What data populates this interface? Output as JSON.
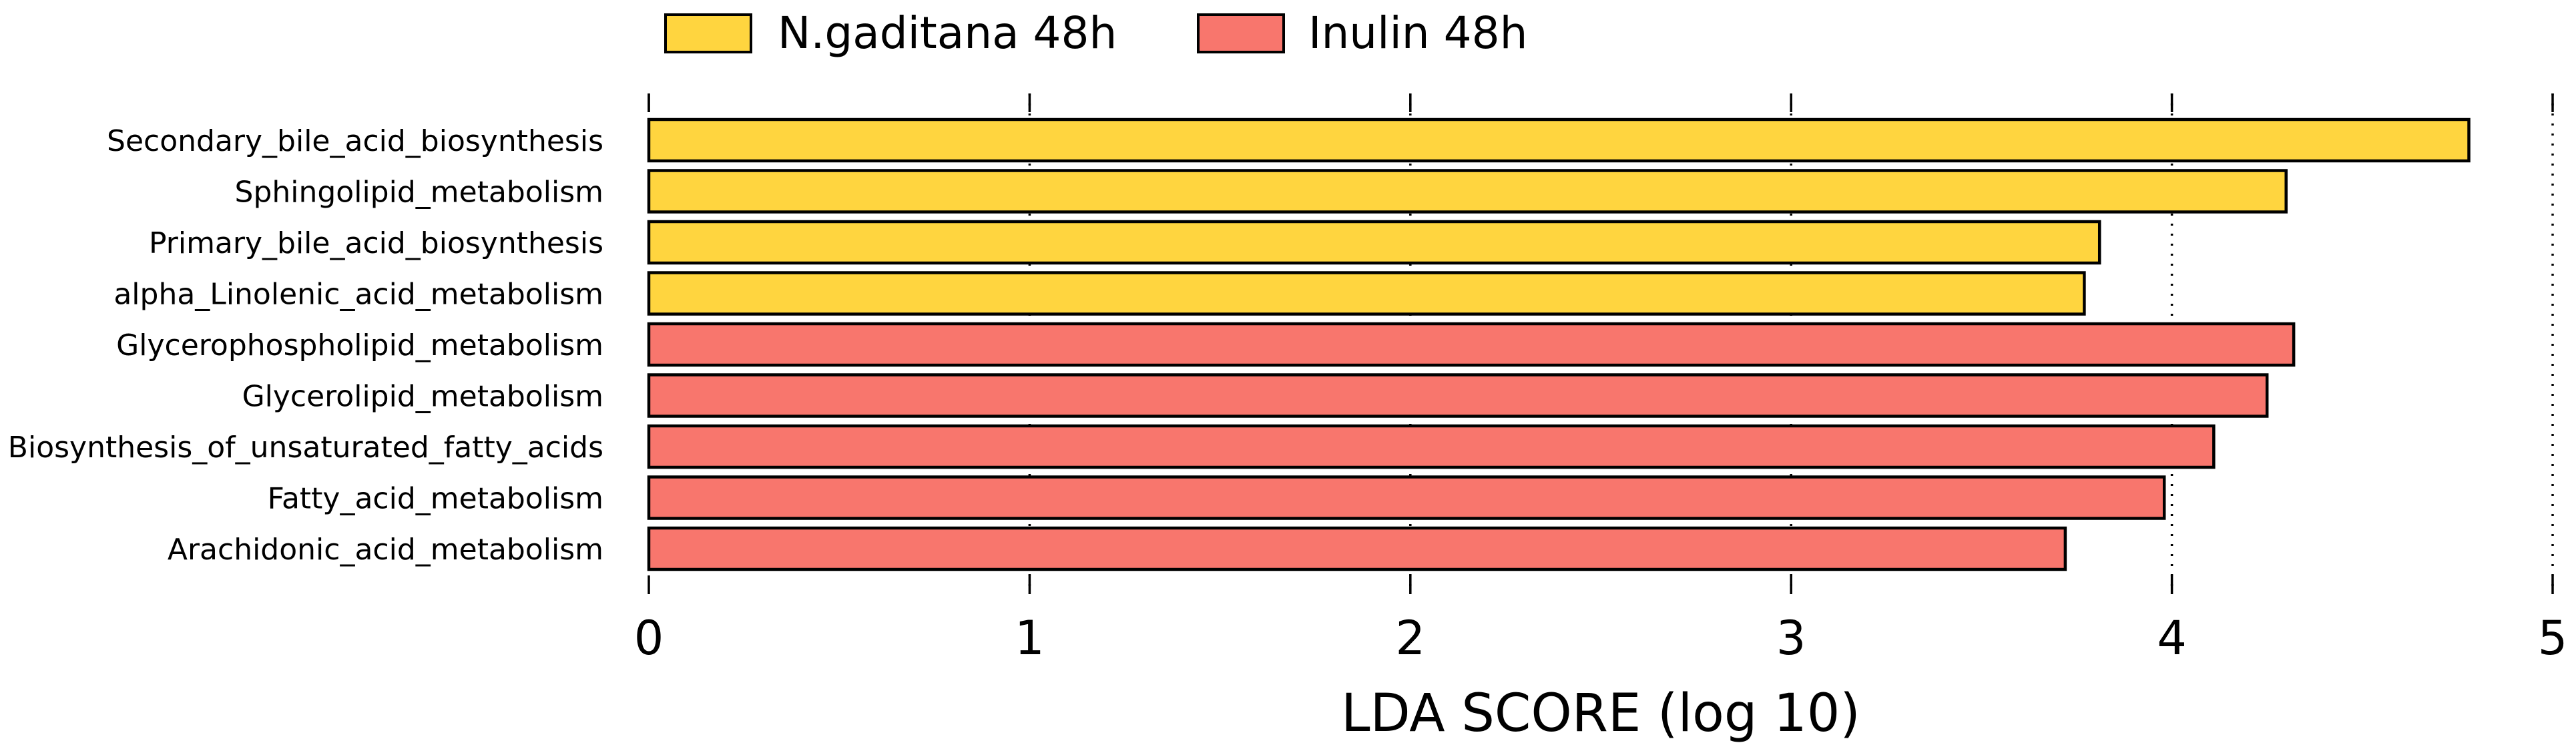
{
  "chart_data": {
    "type": "bar",
    "orientation": "horizontal",
    "xlabel": "LDA SCORE (log 10)",
    "ylabel": "",
    "xlim": [
      0,
      5
    ],
    "xticks": [
      "0",
      "1",
      "2",
      "3",
      "4",
      "5"
    ],
    "grid": "vertical dotted lines at integer ticks",
    "legend": {
      "placement": "top",
      "entries": [
        {
          "name": "N.gaditana 48h",
          "color": "#FFD53F"
        },
        {
          "name": "Inulin 48h",
          "color": "#F8766D"
        }
      ]
    },
    "bars": [
      {
        "category": "Secondary_bile_acid_biosynthesis",
        "value": 4.78,
        "group": "N.gaditana 48h"
      },
      {
        "category": "Sphingolipid_metabolism",
        "value": 4.3,
        "group": "N.gaditana 48h"
      },
      {
        "category": "Primary_bile_acid_biosynthesis",
        "value": 3.81,
        "group": "N.gaditana 48h"
      },
      {
        "category": "alpha_Linolenic_acid_metabolism",
        "value": 3.77,
        "group": "N.gaditana 48h"
      },
      {
        "category": "Glycerophospholipid_metabolism",
        "value": 4.32,
        "group": "Inulin 48h"
      },
      {
        "category": "Glycerolipid_metabolism",
        "value": 4.25,
        "group": "Inulin 48h"
      },
      {
        "category": "Biosynthesis_of_unsaturated_fatty_acids",
        "value": 4.11,
        "group": "Inulin 48h"
      },
      {
        "category": "Fatty_acid_metabolism",
        "value": 3.98,
        "group": "Inulin 48h"
      },
      {
        "category": "Arachidonic_acid_metabolism",
        "value": 3.72,
        "group": "Inulin 48h"
      }
    ]
  }
}
